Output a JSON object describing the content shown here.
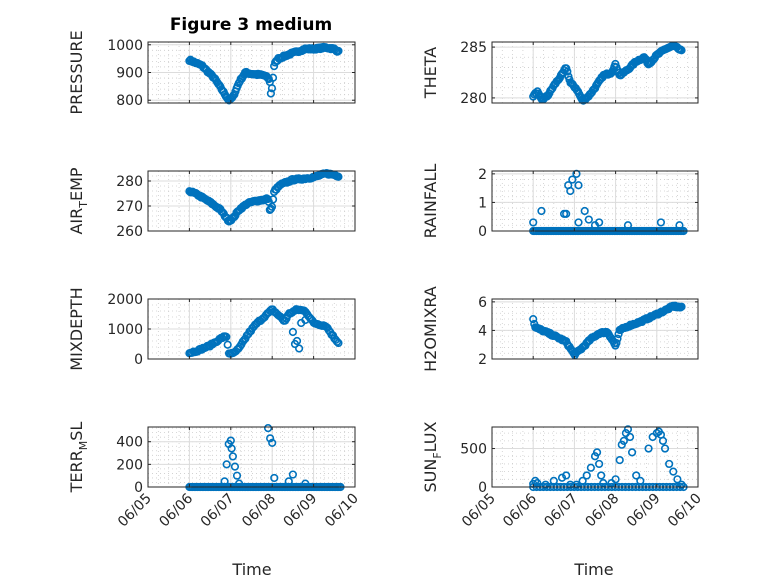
{
  "figure": {
    "title": "Figure 3 medium",
    "xlabel": "Time"
  },
  "chart_data": [
    {
      "type": "scatter",
      "ylabel": "PRESSURE",
      "ylabel_sub": "",
      "ylim": [
        790,
        1010
      ],
      "yticks": [
        800,
        900,
        1000
      ],
      "yticklabels": [
        "800",
        "900",
        "1000"
      ],
      "xlim": [
        0,
        5
      ],
      "xticks": [
        0,
        1,
        2,
        3,
        4,
        5
      ],
      "xticklabels": [],
      "grid": true,
      "minor_grid": true,
      "marker_color": "#0072bd",
      "anchors": [
        [
          1.0,
          945
        ],
        [
          1.3,
          925
        ],
        [
          1.6,
          880
        ],
        [
          1.8,
          835
        ],
        [
          1.95,
          800
        ],
        [
          2.05,
          810
        ],
        [
          2.2,
          865
        ],
        [
          2.35,
          900
        ],
        [
          2.5,
          895
        ],
        [
          2.8,
          890
        ],
        [
          2.9,
          880
        ],
        [
          2.95,
          865
        ],
        [
          2.97,
          820
        ],
        [
          3.0,
          850
        ],
        [
          3.05,
          930
        ],
        [
          3.15,
          950
        ],
        [
          3.4,
          965
        ],
        [
          3.6,
          975
        ],
        [
          3.8,
          985
        ],
        [
          4.0,
          985
        ],
        [
          4.3,
          990
        ],
        [
          4.5,
          985
        ],
        [
          4.6,
          975
        ]
      ],
      "points": 140
    },
    {
      "type": "scatter",
      "ylabel": "THETA",
      "ylabel_sub": "",
      "ylim": [
        279.5,
        285.5
      ],
      "yticks": [
        280,
        285
      ],
      "yticklabels": [
        "280",
        "285"
      ],
      "xlim": [
        0,
        5
      ],
      "xticks": [
        0,
        1,
        2,
        3,
        4,
        5
      ],
      "xticklabels": [],
      "grid": true,
      "minor_grid": true,
      "marker_color": "#0072bd",
      "anchors": [
        [
          1.0,
          280.2
        ],
        [
          1.1,
          280.6
        ],
        [
          1.2,
          279.8
        ],
        [
          1.35,
          280.2
        ],
        [
          1.5,
          281.2
        ],
        [
          1.7,
          282.3
        ],
        [
          1.8,
          283.0
        ],
        [
          1.9,
          281.5
        ],
        [
          2.05,
          280.9
        ],
        [
          2.2,
          279.7
        ],
        [
          2.35,
          280.2
        ],
        [
          2.5,
          281.0
        ],
        [
          2.7,
          282.2
        ],
        [
          2.9,
          282.5
        ],
        [
          3.0,
          283.3
        ],
        [
          3.1,
          282.2
        ],
        [
          3.3,
          282.8
        ],
        [
          3.5,
          283.6
        ],
        [
          3.7,
          284.0
        ],
        [
          3.8,
          283.3
        ],
        [
          4.0,
          284.2
        ],
        [
          4.2,
          284.8
        ],
        [
          4.4,
          285.1
        ],
        [
          4.5,
          284.9
        ],
        [
          4.6,
          284.6
        ]
      ],
      "points": 140
    },
    {
      "type": "scatter",
      "ylabel": "AIR",
      "ylabel_sub": "T",
      "ylabel_suffix": "EMP",
      "ylim": [
        260,
        284
      ],
      "yticks": [
        260,
        270,
        280
      ],
      "yticklabels": [
        "260",
        "270",
        "280"
      ],
      "xlim": [
        0,
        5
      ],
      "xticks": [
        0,
        1,
        2,
        3,
        4,
        5
      ],
      "xticklabels": [],
      "grid": true,
      "minor_grid": true,
      "marker_color": "#0072bd",
      "anchors": [
        [
          1.0,
          276
        ],
        [
          1.2,
          274.5
        ],
        [
          1.5,
          271.5
        ],
        [
          1.75,
          268.5
        ],
        [
          1.95,
          264
        ],
        [
          2.05,
          265
        ],
        [
          2.2,
          268.5
        ],
        [
          2.4,
          271
        ],
        [
          2.6,
          272
        ],
        [
          2.8,
          272.5
        ],
        [
          2.9,
          273
        ],
        [
          2.95,
          268
        ],
        [
          3.0,
          270
        ],
        [
          3.05,
          276
        ],
        [
          3.2,
          278.5
        ],
        [
          3.5,
          280.5
        ],
        [
          3.8,
          281
        ],
        [
          4.0,
          281.5
        ],
        [
          4.3,
          283
        ],
        [
          4.5,
          282.5
        ],
        [
          4.6,
          282
        ]
      ],
      "points": 140
    },
    {
      "type": "scatter",
      "ylabel": "RAINFALL",
      "ylabel_sub": "",
      "ylim": [
        0,
        2.1
      ],
      "yticks": [
        0,
        1,
        2
      ],
      "yticklabels": [
        "0",
        "1",
        "2"
      ],
      "xlim": [
        0,
        5
      ],
      "xticks": [
        0,
        1,
        2,
        3,
        4,
        5
      ],
      "xticklabels": [],
      "grid": true,
      "minor_grid": true,
      "marker_color": "#0072bd",
      "baseline": 0,
      "baseline_start": 1.0,
      "baseline_end": 4.65,
      "baseline_points": 90,
      "spikes": [
        [
          1.0,
          0.3
        ],
        [
          1.2,
          0.7
        ],
        [
          1.75,
          0.6
        ],
        [
          1.85,
          1.6
        ],
        [
          1.9,
          1.4
        ],
        [
          1.95,
          1.8
        ],
        [
          2.05,
          2.0
        ],
        [
          2.1,
          1.6
        ],
        [
          1.8,
          0.6
        ],
        [
          2.1,
          0.3
        ],
        [
          2.25,
          0.7
        ],
        [
          2.35,
          0.4
        ],
        [
          2.5,
          0.2
        ],
        [
          2.6,
          0.3
        ],
        [
          3.3,
          0.2
        ],
        [
          4.1,
          0.3
        ],
        [
          4.55,
          0.2
        ]
      ]
    },
    {
      "type": "scatter",
      "ylabel": "MIXDEPTH",
      "ylabel_sub": "",
      "ylim": [
        0,
        2000
      ],
      "yticks": [
        0,
        1000,
        2000
      ],
      "yticklabels": [
        "0",
        "1000",
        "2000"
      ],
      "xlim": [
        0,
        5
      ],
      "xticks": [
        0,
        1,
        2,
        3,
        4,
        5
      ],
      "xticklabels": [],
      "grid": true,
      "minor_grid": true,
      "marker_color": "#0072bd",
      "anchors": [
        [
          1.0,
          200
        ],
        [
          1.2,
          280
        ],
        [
          1.5,
          450
        ],
        [
          1.8,
          720
        ],
        [
          1.9,
          750
        ],
        [
          1.95,
          200
        ],
        [
          2.05,
          170
        ],
        [
          2.2,
          350
        ],
        [
          2.4,
          800
        ],
        [
          2.6,
          1150
        ],
        [
          2.8,
          1400
        ],
        [
          3.0,
          1650
        ],
        [
          3.2,
          1400
        ],
        [
          3.3,
          1250
        ],
        [
          3.4,
          1500
        ],
        [
          3.6,
          1650
        ],
        [
          3.8,
          1600
        ],
        [
          4.0,
          1200
        ],
        [
          4.3,
          1100
        ],
        [
          4.5,
          700
        ],
        [
          4.6,
          550
        ]
      ],
      "extra": [
        [
          3.5,
          900
        ],
        [
          3.55,
          500
        ],
        [
          3.6,
          600
        ],
        [
          3.7,
          1200
        ],
        [
          3.8,
          1300
        ],
        [
          3.65,
          350
        ]
      ],
      "points": 110
    },
    {
      "type": "scatter",
      "ylabel": "H2OMIXRA",
      "ylabel_sub": "",
      "ylim": [
        2,
        6.2
      ],
      "yticks": [
        2,
        4,
        6
      ],
      "yticklabels": [
        "2",
        "4",
        "6"
      ],
      "xlim": [
        0,
        5
      ],
      "xticks": [
        0,
        1,
        2,
        3,
        4,
        5
      ],
      "xticklabels": [],
      "grid": true,
      "minor_grid": true,
      "marker_color": "#0072bd",
      "anchors": [
        [
          1.0,
          4.8
        ],
        [
          1.05,
          4.2
        ],
        [
          1.3,
          3.9
        ],
        [
          1.6,
          3.5
        ],
        [
          1.8,
          3.2
        ],
        [
          2.0,
          2.3
        ],
        [
          2.2,
          2.8
        ],
        [
          2.4,
          3.4
        ],
        [
          2.6,
          3.8
        ],
        [
          2.8,
          3.9
        ],
        [
          2.95,
          3.2
        ],
        [
          3.0,
          2.9
        ],
        [
          3.1,
          4.0
        ],
        [
          3.3,
          4.3
        ],
        [
          3.6,
          4.6
        ],
        [
          3.9,
          5.0
        ],
        [
          4.2,
          5.4
        ],
        [
          4.4,
          5.7
        ],
        [
          4.6,
          5.6
        ]
      ],
      "points": 140
    },
    {
      "type": "scatter",
      "ylabel": "TERR",
      "ylabel_sub": "M",
      "ylabel_suffix": "SL",
      "ylim": [
        0,
        530
      ],
      "yticks": [
        0,
        200,
        400
      ],
      "yticklabels": [
        "0",
        "200",
        "400"
      ],
      "xlim": [
        0,
        5
      ],
      "xticks": [
        0,
        1,
        2,
        3,
        4,
        5
      ],
      "xticklabels": [
        "06/05",
        "06/06",
        "06/07",
        "06/08",
        "06/09",
        "06/10"
      ],
      "grid": true,
      "minor_grid": true,
      "marker_color": "#0072bd",
      "baseline": 0,
      "baseline_start": 1.0,
      "baseline_end": 4.65,
      "baseline_points": 95,
      "spikes": [
        [
          1.85,
          50
        ],
        [
          1.9,
          200
        ],
        [
          1.95,
          380
        ],
        [
          2.0,
          410
        ],
        [
          2.02,
          340
        ],
        [
          2.05,
          270
        ],
        [
          2.1,
          180
        ],
        [
          2.15,
          100
        ],
        [
          2.2,
          30
        ],
        [
          2.9,
          520
        ],
        [
          2.95,
          430
        ],
        [
          3.0,
          390
        ],
        [
          3.05,
          80
        ],
        [
          3.4,
          50
        ],
        [
          3.5,
          110
        ],
        [
          3.8,
          30
        ]
      ]
    },
    {
      "type": "scatter",
      "ylabel": "SUN",
      "ylabel_sub": "F",
      "ylabel_suffix": "LUX",
      "ylim": [
        0,
        780
      ],
      "yticks": [
        0,
        500
      ],
      "yticklabels": [
        "0",
        "500"
      ],
      "xlim": [
        0,
        5
      ],
      "xticks": [
        0,
        1,
        2,
        3,
        4,
        5
      ],
      "xticklabels": [
        "06/05",
        "06/06",
        "06/07",
        "06/08",
        "06/09",
        "06/10"
      ],
      "grid": true,
      "minor_grid": true,
      "marker_color": "#0072bd",
      "baseline": 0,
      "baseline_start": 1.0,
      "baseline_end": 4.65,
      "baseline_points": 45,
      "spikes": [
        [
          1.0,
          40
        ],
        [
          1.05,
          80
        ],
        [
          1.1,
          50
        ],
        [
          1.3,
          30
        ],
        [
          1.5,
          80
        ],
        [
          1.7,
          120
        ],
        [
          1.8,
          150
        ],
        [
          1.9,
          30
        ],
        [
          2.05,
          30
        ],
        [
          2.2,
          80
        ],
        [
          2.3,
          150
        ],
        [
          2.4,
          250
        ],
        [
          2.5,
          400
        ],
        [
          2.55,
          450
        ],
        [
          2.6,
          300
        ],
        [
          2.65,
          150
        ],
        [
          2.7,
          50
        ],
        [
          2.9,
          50
        ],
        [
          3.0,
          100
        ],
        [
          3.1,
          350
        ],
        [
          3.15,
          550
        ],
        [
          3.2,
          600
        ],
        [
          3.25,
          700
        ],
        [
          3.3,
          750
        ],
        [
          3.35,
          650
        ],
        [
          3.4,
          450
        ],
        [
          3.5,
          150
        ],
        [
          3.6,
          80
        ],
        [
          3.8,
          500
        ],
        [
          3.9,
          650
        ],
        [
          4.0,
          700
        ],
        [
          4.05,
          720
        ],
        [
          4.1,
          680
        ],
        [
          4.15,
          600
        ],
        [
          4.2,
          500
        ],
        [
          4.3,
          300
        ],
        [
          4.4,
          200
        ],
        [
          4.5,
          100
        ],
        [
          4.6,
          30
        ]
      ]
    }
  ]
}
